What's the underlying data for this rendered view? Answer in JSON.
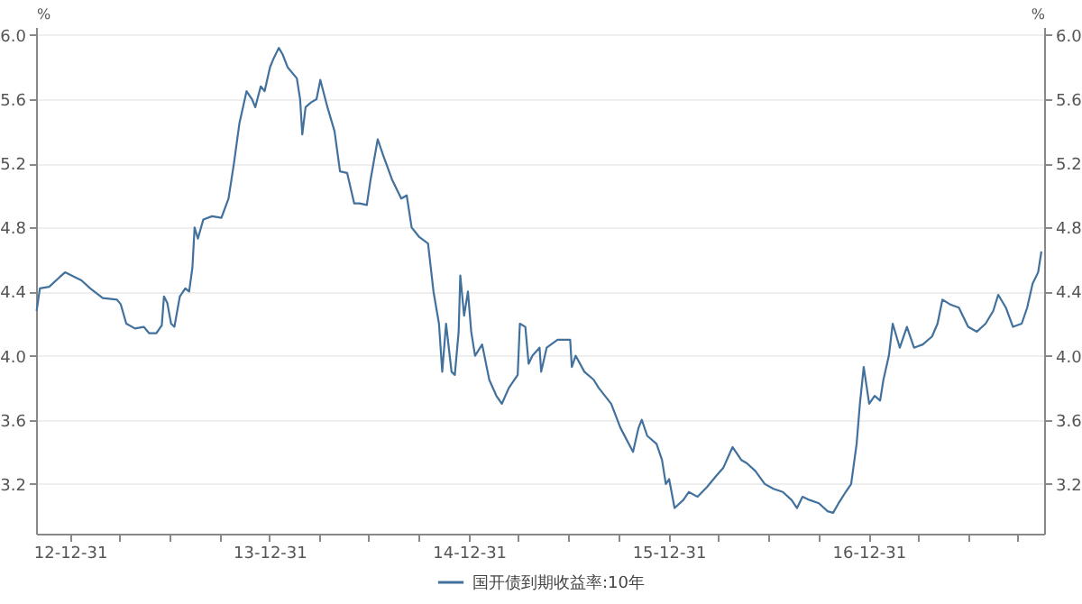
{
  "chart_data": {
    "type": "line",
    "ylabel": "%",
    "y2label": "%",
    "grid": "y",
    "legend": "bottom",
    "xlim": [
      "2012-10-30",
      "2017-11-17"
    ],
    "xticks": [
      {
        "value": "2012-12-31",
        "label": "12-12-31"
      },
      {
        "value": "2013-03-31",
        "label": null
      },
      {
        "value": "2013-06-30",
        "label": null
      },
      {
        "value": "2013-09-30",
        "label": null
      },
      {
        "value": "2013-12-31",
        "label": "13-12-31"
      },
      {
        "value": "2014-03-31",
        "label": null
      },
      {
        "value": "2014-06-30",
        "label": null
      },
      {
        "value": "2014-09-30",
        "label": null
      },
      {
        "value": "2014-12-31",
        "label": "14-12-31"
      },
      {
        "value": "2015-03-31",
        "label": null
      },
      {
        "value": "2015-06-30",
        "label": null
      },
      {
        "value": "2015-09-30",
        "label": null
      },
      {
        "value": "2015-12-31",
        "label": "15-12-31"
      },
      {
        "value": "2016-03-31",
        "label": null
      },
      {
        "value": "2016-06-30",
        "label": null
      },
      {
        "value": "2016-09-30",
        "label": null
      },
      {
        "value": "2016-12-31",
        "label": "16-12-31"
      },
      {
        "value": "2017-03-31",
        "label": null
      },
      {
        "value": "2017-06-30",
        "label": null
      },
      {
        "value": "2017-09-30",
        "label": null
      }
    ],
    "ylim": [
      2.89,
      6.05
    ],
    "yticks": [
      3.2,
      3.6,
      {
        "value": 4,
        "label": "4.0"
      },
      4.4,
      4.8,
      5.2,
      5.6,
      {
        "value": 6,
        "label": "6.0"
      }
    ],
    "y2lim": [
      2.89,
      6.05
    ],
    "y2ticks": [
      3.2,
      3.6,
      {
        "value": 4,
        "label": "4.0"
      },
      4.4,
      4.8,
      5.2,
      5.6,
      {
        "value": 6,
        "label": "6.0"
      }
    ],
    "x": [
      "2012-10-31",
      "2012-11-06",
      "2012-11-23",
      "2012-12-12",
      "2012-12-22",
      "2013-01-21",
      "2013-02-06",
      "2013-03-01",
      "2013-03-27",
      "2013-04-03",
      "2013-04-13",
      "2013-04-29",
      "2013-05-15",
      "2013-05-25",
      "2013-06-07",
      "2013-06-17",
      "2013-06-21",
      "2013-06-27",
      "2013-07-04",
      "2013-07-10",
      "2013-07-20",
      "2013-07-30",
      "2013-08-06",
      "2013-08-12",
      "2013-08-16",
      "2013-08-22",
      "2013-09-01",
      "2013-09-17",
      "2013-10-04",
      "2013-10-17",
      "2013-10-27",
      "2013-11-06",
      "2013-11-19",
      "2013-11-29",
      "2013-12-05",
      "2013-12-15",
      "2013-12-22",
      "2014-01-01",
      "2014-01-07",
      "2014-01-17",
      "2014-01-24",
      "2014-02-02",
      "2014-02-19",
      "2014-02-25",
      "2014-03-01",
      "2014-03-07",
      "2014-03-17",
      "2014-03-27",
      "2014-04-03",
      "2014-04-16",
      "2014-04-29",
      "2014-05-09",
      "2014-05-22",
      "2014-06-04",
      "2014-06-14",
      "2014-06-27",
      "2014-07-04",
      "2014-07-17",
      "2014-07-27",
      "2014-08-12",
      "2014-08-29",
      "2014-09-08",
      "2014-09-17",
      "2014-10-01",
      "2014-10-17",
      "2014-10-27",
      "2014-11-06",
      "2014-11-12",
      "2014-11-19",
      "2014-11-29",
      "2014-12-05",
      "2014-12-12",
      "2014-12-15",
      "2014-12-22",
      "2014-12-29",
      "2015-01-04",
      "2015-01-11",
      "2015-01-24",
      "2015-02-06",
      "2015-02-19",
      "2015-03-01",
      "2015-03-14",
      "2015-03-30",
      "2015-04-03",
      "2015-04-13",
      "2015-04-19",
      "2015-04-26",
      "2015-05-09",
      "2015-05-12",
      "2015-05-22",
      "2015-06-11",
      "2015-07-04",
      "2015-07-07",
      "2015-07-14",
      "2015-07-30",
      "2015-08-16",
      "2015-08-25",
      "2015-09-17",
      "2015-10-04",
      "2015-10-27",
      "2015-11-06",
      "2015-11-12",
      "2015-11-22",
      "2015-12-09",
      "2015-12-19",
      "2015-12-26",
      "2016-01-01",
      "2016-01-11",
      "2016-01-27",
      "2016-02-06",
      "2016-02-22",
      "2016-03-10",
      "2016-03-27",
      "2016-04-09",
      "2016-04-26",
      "2016-05-12",
      "2016-05-22",
      "2016-06-07",
      "2016-06-24",
      "2016-07-10",
      "2016-07-27",
      "2016-08-12",
      "2016-08-22",
      "2016-09-01",
      "2016-09-14",
      "2016-10-01",
      "2016-10-17",
      "2016-10-27",
      "2016-11-06",
      "2016-11-19",
      "2016-11-29",
      "2016-12-09",
      "2016-12-15",
      "2016-12-22",
      "2017-01-01",
      "2017-01-11",
      "2017-01-21",
      "2017-01-27",
      "2017-02-06",
      "2017-02-13",
      "2017-02-26",
      "2017-03-11",
      "2017-03-24",
      "2017-04-09",
      "2017-04-26",
      "2017-05-06",
      "2017-05-15",
      "2017-05-29",
      "2017-06-14",
      "2017-07-01",
      "2017-07-17",
      "2017-08-02",
      "2017-08-16",
      "2017-08-25",
      "2017-09-08",
      "2017-09-21",
      "2017-10-07",
      "2017-10-17",
      "2017-10-27",
      "2017-11-06",
      "2017-11-12"
    ],
    "series": [
      {
        "name": "国开债到期收益率:10年",
        "color": "#41719c",
        "values": [
          4.28,
          4.42,
          4.43,
          4.49,
          4.52,
          4.47,
          4.42,
          4.36,
          4.35,
          4.32,
          4.2,
          4.17,
          4.18,
          4.14,
          4.14,
          4.19,
          4.37,
          4.33,
          4.2,
          4.18,
          4.37,
          4.42,
          4.4,
          4.55,
          4.8,
          4.73,
          4.85,
          4.87,
          4.86,
          4.98,
          5.2,
          5.45,
          5.65,
          5.6,
          5.55,
          5.68,
          5.65,
          5.8,
          5.85,
          5.92,
          5.88,
          5.8,
          5.73,
          5.6,
          5.38,
          5.55,
          5.58,
          5.6,
          5.72,
          5.55,
          5.4,
          5.15,
          5.14,
          4.95,
          4.95,
          4.94,
          5.1,
          5.35,
          5.25,
          5.1,
          4.98,
          5.0,
          4.8,
          4.74,
          4.7,
          4.4,
          4.2,
          3.9,
          4.2,
          3.9,
          3.88,
          4.15,
          4.5,
          4.25,
          4.4,
          4.15,
          4.0,
          4.07,
          3.85,
          3.75,
          3.7,
          3.8,
          3.88,
          4.2,
          4.18,
          3.95,
          4.0,
          4.05,
          3.9,
          4.05,
          4.1,
          4.1,
          3.93,
          4.0,
          3.9,
          3.85,
          3.8,
          3.7,
          3.55,
          3.4,
          3.55,
          3.6,
          3.5,
          3.45,
          3.35,
          3.2,
          3.23,
          3.05,
          3.1,
          3.15,
          3.12,
          3.18,
          3.25,
          3.3,
          3.43,
          3.35,
          3.33,
          3.28,
          3.2,
          3.17,
          3.15,
          3.1,
          3.05,
          3.12,
          3.1,
          3.08,
          3.03,
          3.02,
          3.08,
          3.15,
          3.2,
          3.45,
          3.7,
          3.93,
          3.7,
          3.75,
          3.72,
          3.85,
          4.0,
          4.2,
          4.05,
          4.18,
          4.05,
          4.07,
          4.12,
          4.2,
          4.35,
          4.32,
          4.3,
          4.18,
          4.15,
          4.2,
          4.28,
          4.38,
          4.3,
          4.18,
          4.2,
          4.3,
          4.45,
          4.52,
          4.65
        ]
      }
    ]
  }
}
